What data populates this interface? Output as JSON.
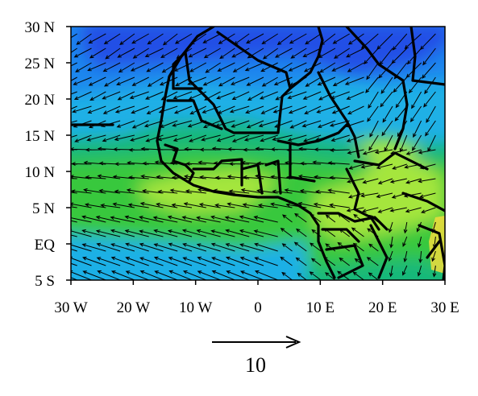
{
  "map": {
    "extent": {
      "lon_min": -30,
      "lon_max": 30,
      "lat_min": -5,
      "lat_max": 30
    },
    "y_ticks": [
      "30 N",
      "25 N",
      "20 N",
      "15 N",
      "10 N",
      "5 N",
      "EQ",
      "5 S"
    ],
    "x_ticks": [
      "30 W",
      "20 W",
      "10 W",
      "0",
      "10 E",
      "20 E",
      "30 E"
    ],
    "y_tick_lats": [
      30,
      25,
      20,
      15,
      10,
      5,
      0,
      -5
    ],
    "x_tick_lons": [
      -30,
      -20,
      -10,
      0,
      10,
      20,
      30
    ],
    "shading_colors": [
      "#2350e6",
      "#1f86ee",
      "#1fb0e6",
      "#19b87a",
      "#37c83c",
      "#a5e63c",
      "#f0dc3c"
    ],
    "vectors": "wind-vector-field",
    "boundaries": "country-borders-and-coastline"
  },
  "reference_vector": {
    "label": "10"
  }
}
